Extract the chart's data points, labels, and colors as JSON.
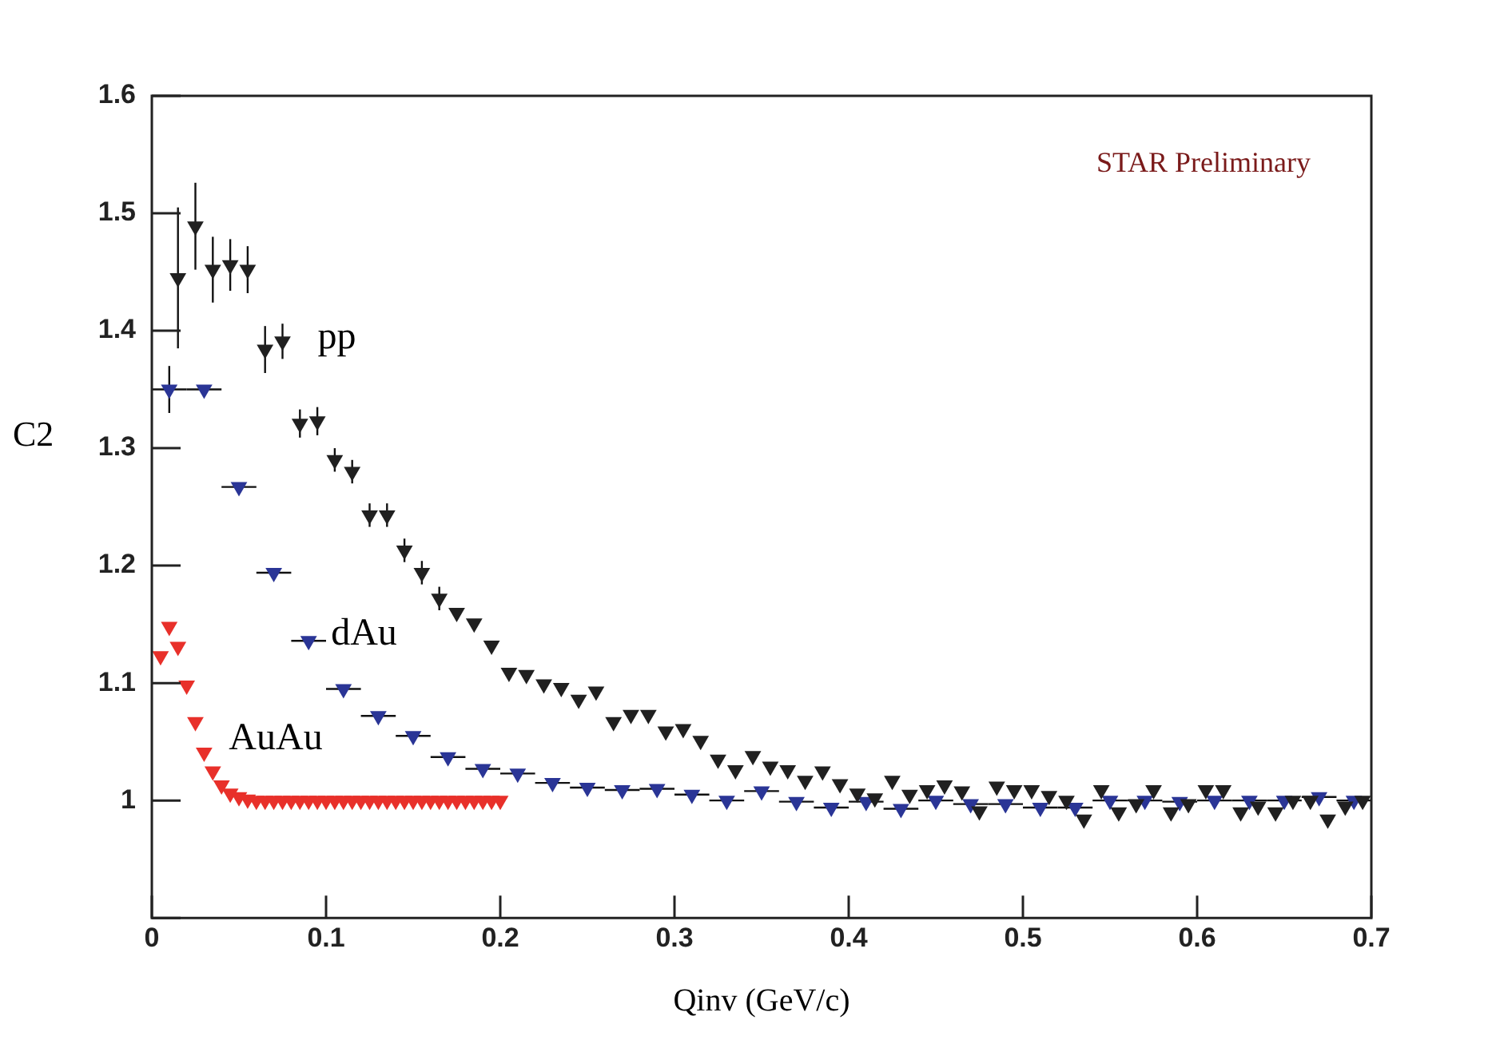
{
  "chart_data": {
    "type": "scatter",
    "xlabel": "Qinv (GeV/c)",
    "ylabel": "C2",
    "annotations": [
      "STAR Preliminary"
    ],
    "xlim": [
      0,
      0.7
    ],
    "ylim": [
      0.9,
      1.6
    ],
    "xticks": [
      0,
      0.1,
      0.2,
      0.3,
      0.4,
      0.5,
      0.6,
      0.7
    ],
    "yticks": [
      {
        "value": 0.9,
        "label": null
      },
      1,
      1.1,
      1.2,
      1.3,
      1.4,
      1.5,
      1.6
    ],
    "grid": false,
    "legend": false,
    "marker": "triangle",
    "series": [
      {
        "name": "pp",
        "color": "#202020",
        "x": [
          0.015,
          0.025,
          0.035,
          0.045,
          0.055,
          0.065,
          0.075,
          0.085,
          0.095,
          0.105,
          0.115,
          0.125,
          0.135,
          0.145,
          0.155,
          0.165,
          0.175,
          0.185,
          0.195,
          0.205,
          0.215,
          0.225,
          0.235,
          0.245,
          0.255,
          0.265,
          0.275,
          0.285,
          0.295,
          0.305,
          0.315,
          0.325,
          0.335,
          0.345,
          0.355,
          0.365,
          0.375,
          0.385,
          0.395,
          0.405,
          0.415,
          0.425,
          0.435,
          0.445,
          0.455,
          0.465,
          0.475,
          0.485,
          0.495,
          0.505,
          0.515,
          0.525,
          0.535,
          0.545,
          0.555,
          0.565,
          0.575,
          0.585,
          0.595,
          0.605,
          0.615,
          0.625,
          0.635,
          0.645,
          0.655,
          0.665,
          0.675,
          0.685,
          0.695
        ],
        "values": [
          1.445,
          1.489,
          1.452,
          1.456,
          1.452,
          1.384,
          1.391,
          1.321,
          1.323,
          1.29,
          1.28,
          1.243,
          1.243,
          1.213,
          1.194,
          1.172,
          1.16,
          1.151,
          1.132,
          1.109,
          1.107,
          1.099,
          1.096,
          1.086,
          1.093,
          1.067,
          1.073,
          1.073,
          1.059,
          1.061,
          1.051,
          1.035,
          1.026,
          1.038,
          1.029,
          1.026,
          1.017,
          1.025,
          1.014,
          1.006,
          1.002,
          1.017,
          1.005,
          1.009,
          1.013,
          1.008,
          0.991,
          1.012,
          1.009,
          1.009,
          1.004,
          1.0,
          0.984,
          1.009,
          0.99,
          0.997,
          1.009,
          0.99,
          0.997,
          1.009,
          1.009,
          0.99,
          0.995,
          0.99,
          1.0,
          1.0,
          0.984,
          0.995,
          1.0
        ],
        "errors": [
          0.06,
          0.037,
          0.028,
          0.022,
          0.02,
          0.02,
          0.015,
          0.012,
          0.012,
          0.01,
          0.01,
          0.01,
          0.01,
          0.01,
          0.01,
          0.01,
          null,
          null,
          null,
          null,
          null,
          null,
          null,
          null,
          null,
          null,
          null,
          null,
          null,
          null,
          null,
          null,
          null,
          null,
          null,
          null,
          null,
          null,
          null,
          null,
          null,
          null,
          null,
          null,
          null,
          null,
          null,
          null,
          null,
          null,
          null,
          null,
          null,
          null,
          null,
          null,
          null,
          null,
          null,
          null,
          null,
          null,
          null,
          null,
          null,
          null,
          null,
          null,
          null
        ]
      },
      {
        "name": "dAu",
        "color": "#2a3596",
        "x": [
          0.01,
          0.03,
          0.05,
          0.07,
          0.09,
          0.11,
          0.13,
          0.15,
          0.17,
          0.19,
          0.21,
          0.23,
          0.25,
          0.27,
          0.29,
          0.31,
          0.33,
          0.35,
          0.37,
          0.39,
          0.41,
          0.43,
          0.45,
          0.47,
          0.49,
          0.51,
          0.53,
          0.55,
          0.57,
          0.59,
          0.61,
          0.63,
          0.65,
          0.67,
          0.69
        ],
        "values": [
          1.35,
          1.35,
          1.267,
          1.194,
          1.136,
          1.095,
          1.072,
          1.055,
          1.037,
          1.027,
          1.023,
          1.015,
          1.011,
          1.009,
          1.01,
          1.005,
          1.0,
          1.008,
          0.999,
          0.994,
          0.999,
          0.993,
          1.0,
          0.997,
          0.997,
          0.994,
          0.994,
          1.0,
          1.0,
          0.999,
          1.0,
          1.0,
          1.0,
          1.003,
          1.0
        ],
        "errors": [
          0.02,
          null,
          null,
          null,
          null,
          null,
          null,
          null,
          null,
          null,
          null,
          null,
          null,
          null,
          null,
          null,
          null,
          null,
          null,
          null,
          null,
          null,
          null,
          null,
          null,
          null,
          null,
          null,
          null,
          null,
          null,
          null,
          null,
          null,
          null
        ],
        "xerrors": [
          0.01,
          0.01,
          0.01,
          0.01,
          0.01,
          0.01,
          0.01,
          0.01,
          0.01,
          0.01,
          0.01,
          0.01,
          0.01,
          0.01,
          0.01,
          0.01,
          0.01,
          0.01,
          0.01,
          0.01,
          0.01,
          0.01,
          0.01,
          0.01,
          0.01,
          0.01,
          0.01,
          0.01,
          0.01,
          0.01,
          0.01,
          0.01,
          0.01,
          0.01,
          0.01
        ]
      },
      {
        "name": "AuAu",
        "color": "#e8302a",
        "x": [
          0.005,
          0.01,
          0.015,
          0.02,
          0.025,
          0.03,
          0.035,
          0.04,
          0.045,
          0.05,
          0.055,
          0.06,
          0.065,
          0.07,
          0.075,
          0.08,
          0.085,
          0.09,
          0.095,
          0.1,
          0.105,
          0.11,
          0.115,
          0.12,
          0.125,
          0.13,
          0.135,
          0.14,
          0.145,
          0.15,
          0.155,
          0.16,
          0.165,
          0.17,
          0.175,
          0.18,
          0.185,
          0.19,
          0.195,
          0.2
        ],
        "values": [
          1.123,
          1.148,
          1.131,
          1.098,
          1.067,
          1.041,
          1.025,
          1.013,
          1.006,
          1.003,
          1.001,
          1.0,
          1.0,
          1.0,
          1.0,
          1.0,
          1.0,
          1.0,
          1.0,
          1.0,
          1.0,
          1.0,
          1.0,
          1.0,
          1.0,
          1.0,
          1.0,
          1.0,
          1.0,
          1.0,
          1.0,
          1.0,
          1.0,
          1.0,
          1.0,
          1.0,
          1.0,
          1.0,
          1.0,
          1.0
        ]
      }
    ]
  }
}
